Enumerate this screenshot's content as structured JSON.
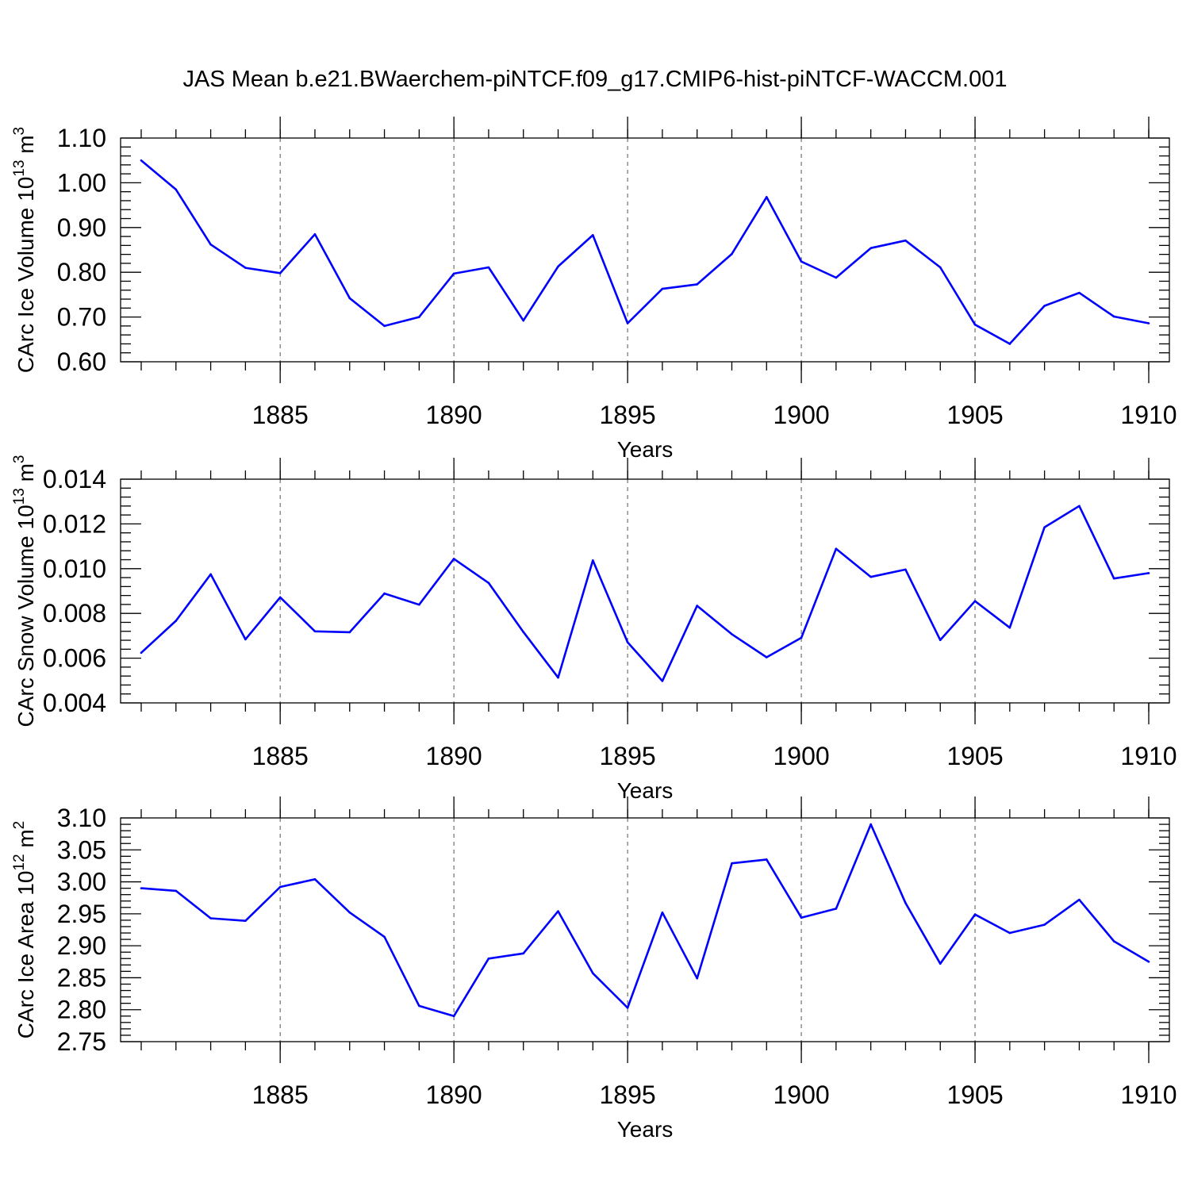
{
  "figure_title": "JAS Mean b.e21.BWaerchem-piNTCF.f09_g17.CMIP6-hist-piNTCF-WACCM.001",
  "colors": {
    "line": "#0000ff",
    "axis": "#000000",
    "grid": "#555555"
  },
  "chart_data": [
    {
      "type": "line",
      "title": "",
      "ylabel": "CArc Ice Volume 10",
      "ylabel_exp": "13",
      "ylabel_unit": " m",
      "ylabel_unit_exp": "3",
      "xlabel": "Years",
      "xlim": [
        1881,
        1910
      ],
      "ylim": [
        0.6,
        1.1
      ],
      "yticks": [
        0.6,
        0.7,
        0.8,
        0.9,
        1.0,
        1.1
      ],
      "ytick_labels": [
        "0.60",
        "0.70",
        "0.80",
        "0.90",
        "1.00",
        "1.10"
      ],
      "xticks": [
        1885,
        1890,
        1895,
        1900,
        1905,
        1910
      ],
      "xtick_labels": [
        "1885",
        "1890",
        "1895",
        "1900",
        "1905",
        "1910"
      ],
      "grid": "vertical dashed at major x ticks",
      "x": [
        1881,
        1882,
        1883,
        1884,
        1885,
        1886,
        1887,
        1888,
        1889,
        1890,
        1891,
        1892,
        1893,
        1894,
        1895,
        1896,
        1897,
        1898,
        1899,
        1900,
        1901,
        1902,
        1903,
        1904,
        1905,
        1906,
        1907,
        1908,
        1909,
        1910
      ],
      "series": [
        {
          "values": [
            1.05,
            0.985,
            0.862,
            0.81,
            0.798,
            0.885,
            0.742,
            0.68,
            0.7,
            0.797,
            0.811,
            0.692,
            0.813,
            0.883,
            0.686,
            0.763,
            0.773,
            0.841,
            0.968,
            0.824,
            0.788,
            0.854,
            0.871,
            0.811,
            0.683,
            0.64,
            0.725,
            0.754,
            0.701,
            0.686
          ]
        }
      ]
    },
    {
      "type": "line",
      "title": "",
      "ylabel": "CArc Snow Volume 10",
      "ylabel_exp": "13",
      "ylabel_unit": " m",
      "ylabel_unit_exp": "3",
      "xlabel": "Years",
      "xlim": [
        1881,
        1910
      ],
      "ylim": [
        0.004,
        0.014
      ],
      "yticks": [
        0.004,
        0.006,
        0.008,
        0.01,
        0.012,
        0.014
      ],
      "ytick_labels": [
        "0.004",
        "0.006",
        "0.008",
        "0.010",
        "0.012",
        "0.014"
      ],
      "xticks": [
        1885,
        1890,
        1895,
        1900,
        1905,
        1910
      ],
      "xtick_labels": [
        "1885",
        "1890",
        "1895",
        "1900",
        "1905",
        "1910"
      ],
      "grid": "vertical dashed at major x ticks",
      "x": [
        1881,
        1882,
        1883,
        1884,
        1885,
        1886,
        1887,
        1888,
        1889,
        1890,
        1891,
        1892,
        1893,
        1894,
        1895,
        1896,
        1897,
        1898,
        1899,
        1900,
        1901,
        1902,
        1903,
        1904,
        1905,
        1906,
        1907,
        1908,
        1909,
        1910
      ],
      "series": [
        {
          "values": [
            0.00624,
            0.00767,
            0.00975,
            0.00684,
            0.00872,
            0.0072,
            0.00716,
            0.00889,
            0.00839,
            0.01044,
            0.00936,
            0.00717,
            0.00513,
            0.01037,
            0.00671,
            0.00498,
            0.00834,
            0.00707,
            0.00604,
            0.00691,
            0.01089,
            0.00963,
            0.00996,
            0.00681,
            0.00855,
            0.00736,
            0.01185,
            0.0128,
            0.00956,
            0.0098
          ]
        }
      ]
    },
    {
      "type": "line",
      "title": "",
      "ylabel": "CArc Ice Area 10",
      "ylabel_exp": "12",
      "ylabel_unit": " m",
      "ylabel_unit_exp": "2",
      "xlabel": "Years",
      "xlim": [
        1881,
        1910
      ],
      "ylim": [
        2.75,
        3.1
      ],
      "yticks": [
        2.75,
        2.8,
        2.85,
        2.9,
        2.95,
        3.0,
        3.05,
        3.1
      ],
      "ytick_labels": [
        "2.75",
        "2.80",
        "2.85",
        "2.90",
        "2.95",
        "3.00",
        "3.05",
        "3.10"
      ],
      "xticks": [
        1885,
        1890,
        1895,
        1900,
        1905,
        1910
      ],
      "xtick_labels": [
        "1885",
        "1890",
        "1895",
        "1900",
        "1905",
        "1910"
      ],
      "grid": "vertical dashed at major x ticks",
      "x": [
        1881,
        1882,
        1883,
        1884,
        1885,
        1886,
        1887,
        1888,
        1889,
        1890,
        1891,
        1892,
        1893,
        1894,
        1895,
        1896,
        1897,
        1898,
        1899,
        1900,
        1901,
        1902,
        1903,
        1904,
        1905,
        1906,
        1907,
        1908,
        1909,
        1910
      ],
      "series": [
        {
          "values": [
            2.99,
            2.986,
            2.943,
            2.939,
            2.992,
            3.004,
            2.952,
            2.914,
            2.806,
            2.79,
            2.88,
            2.888,
            2.954,
            2.857,
            2.803,
            2.952,
            2.849,
            3.029,
            3.035,
            2.944,
            2.958,
            3.09,
            2.967,
            2.872,
            2.949,
            2.92,
            2.933,
            2.972,
            2.907,
            2.875
          ]
        }
      ]
    }
  ]
}
